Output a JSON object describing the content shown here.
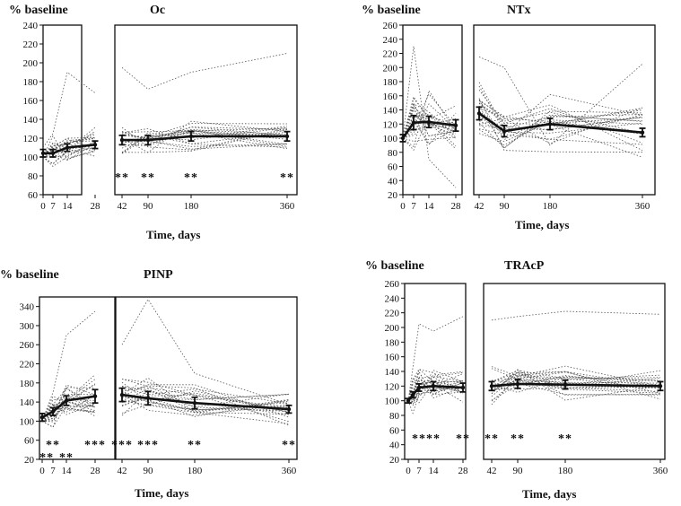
{
  "figure": {
    "colors": {
      "mean_line": "#111111",
      "individual_lines": "#555555",
      "frame": "#111111"
    }
  },
  "chart_data": [
    {
      "type": "line",
      "id": "oc",
      "title": "Oc",
      "ylabel": "% baseline",
      "xlabel": "Time, days",
      "ylim": [
        60,
        240
      ],
      "yticks": [
        60,
        80,
        100,
        120,
        140,
        160,
        180,
        200,
        220,
        240
      ],
      "segments": [
        [
          0,
          28
        ],
        [
          42,
          360
        ]
      ],
      "xticks": [
        0,
        7,
        14,
        28,
        42,
        90,
        180,
        360
      ],
      "mean_series": {
        "name": "mean",
        "x": [
          0,
          7,
          14,
          28,
          42,
          90,
          180,
          360
        ],
        "y": [
          104,
          104,
          110,
          113,
          118,
          118,
          122,
          122
        ],
        "err": [
          4,
          4,
          4,
          4,
          5,
          5,
          5,
          5
        ]
      },
      "individual_lines": 20,
      "ind_spread": 12,
      "outlier": {
        "x": [
          0,
          7,
          14,
          28,
          42,
          90,
          180,
          360
        ],
        "y": [
          110,
          125,
          190,
          168,
          195,
          172,
          190,
          210
        ]
      },
      "annotations": [
        {
          "x": 42,
          "label": "**"
        },
        {
          "x": 90,
          "label": "**"
        },
        {
          "x": 180,
          "label": "**"
        },
        {
          "x": 360,
          "label": "**"
        }
      ]
    },
    {
      "type": "line",
      "id": "ntx",
      "title": "NTx",
      "ylabel": "% baseline",
      "xlabel": "Time, days",
      "ylim": [
        20,
        260
      ],
      "yticks": [
        20,
        40,
        60,
        80,
        100,
        120,
        140,
        160,
        180,
        200,
        220,
        240,
        260
      ],
      "segments": [
        [
          0,
          28
        ],
        [
          42,
          360
        ]
      ],
      "xticks": [
        0,
        7,
        14,
        28,
        42,
        90,
        180,
        360
      ],
      "mean_series": {
        "name": "mean",
        "x": [
          0,
          7,
          14,
          28,
          42,
          90,
          180,
          360
        ],
        "y": [
          100,
          122,
          123,
          118,
          135,
          110,
          120,
          108
        ],
        "err": [
          5,
          10,
          8,
          8,
          9,
          8,
          8,
          6
        ]
      },
      "individual_lines": 22,
      "ind_spread": 30,
      "outlier": {
        "x": [
          0,
          7,
          14,
          28,
          42,
          90,
          180,
          360
        ],
        "y": [
          100,
          230,
          70,
          30,
          215,
          200,
          90,
          205
        ]
      },
      "annotations": []
    },
    {
      "type": "line",
      "id": "pinp",
      "title": "PINP",
      "ylabel": "% baseline",
      "xlabel": "Time, days",
      "ylim": [
        20,
        360
      ],
      "yticks": [
        20,
        60,
        100,
        140,
        180,
        220,
        260,
        300,
        340
      ],
      "segments": [
        [
          0,
          28
        ],
        [
          42,
          360
        ]
      ],
      "xticks": [
        0,
        7,
        14,
        28,
        42,
        90,
        180,
        360
      ],
      "mean_series": {
        "name": "mean",
        "x": [
          0,
          7,
          14,
          28,
          42,
          90,
          180,
          360
        ],
        "y": [
          108,
          120,
          143,
          152,
          155,
          148,
          138,
          125
        ],
        "err": [
          8,
          8,
          10,
          14,
          14,
          14,
          12,
          8
        ]
      },
      "individual_lines": 22,
      "ind_spread": 30,
      "outlier": {
        "x": [
          0,
          7,
          14,
          28,
          42,
          90,
          180,
          360
        ],
        "y": [
          100,
          160,
          280,
          330,
          260,
          355,
          200,
          135
        ]
      },
      "annotations": [
        {
          "x": 3,
          "label": "**",
          "row": 2
        },
        {
          "x": 7,
          "label": "**",
          "row": 1
        },
        {
          "x": 14,
          "label": "**",
          "row": 2
        },
        {
          "x": 28,
          "label": "***",
          "row": 1
        },
        {
          "x": 42,
          "label": "***",
          "row": 1
        },
        {
          "x": 90,
          "label": "***",
          "row": 1
        },
        {
          "x": 180,
          "label": "**",
          "row": 1
        },
        {
          "x": 360,
          "label": "**",
          "row": 1
        }
      ]
    },
    {
      "type": "line",
      "id": "tracp",
      "title": "TRAcP",
      "ylabel": "% baseline",
      "xlabel": "Time, days",
      "ylim": [
        20,
        260
      ],
      "yticks": [
        20,
        40,
        60,
        80,
        100,
        120,
        140,
        160,
        180,
        200,
        220,
        240,
        260
      ],
      "segments": [
        [
          0,
          28
        ],
        [
          42,
          360
        ]
      ],
      "xticks": [
        0,
        7,
        14,
        28,
        42,
        90,
        180,
        360
      ],
      "mean_series": {
        "name": "mean",
        "x": [
          0,
          3,
          7,
          14,
          28,
          42,
          90,
          180,
          360
        ],
        "y": [
          100,
          108,
          118,
          120,
          118,
          120,
          123,
          122,
          120
        ],
        "err": [
          3,
          4,
          5,
          6,
          6,
          6,
          6,
          6,
          6
        ]
      },
      "individual_lines": 22,
      "ind_spread": 18,
      "outlier": {
        "x": [
          0,
          7,
          14,
          28,
          42,
          90,
          180,
          360
        ],
        "y": [
          100,
          205,
          195,
          215,
          210,
          215,
          222,
          218
        ]
      },
      "annotations": [
        {
          "x": 7,
          "label": "**"
        },
        {
          "x": 14,
          "label": "**"
        },
        {
          "x": 28,
          "label": "**"
        },
        {
          "x": 42,
          "label": "**"
        },
        {
          "x": 90,
          "label": "**"
        },
        {
          "x": 180,
          "label": "**"
        }
      ]
    }
  ]
}
